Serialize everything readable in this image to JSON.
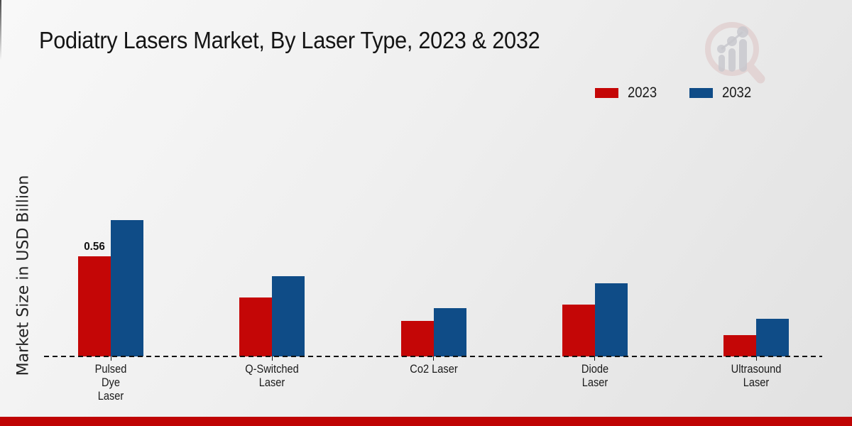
{
  "theme": {
    "background_top": "#f8f8f8",
    "background_bottom": "#e1e1e1",
    "footer_bar_color": "#bf0404",
    "text_color": "#1a1a1a",
    "axis_line_color": "#111111"
  },
  "icons": {
    "brand_logo": "magnifier-bar-chart-watermark"
  },
  "chart_data": {
    "type": "bar",
    "title": "Podiatry Lasers Market, By Laser Type, 2023 & 2032",
    "ylabel": "Market Size in USD Billion",
    "xlabel": "",
    "ylim": [
      0,
      0.8
    ],
    "grid": false,
    "legend_position": "top-right",
    "x_axis_style": "dashed",
    "categories": [
      "Pulsed Dye Laser",
      "Q-Switched Laser",
      "Co2 Laser",
      "Diode Laser",
      "Ultrasound Laser"
    ],
    "category_label_lines": [
      [
        "Pulsed",
        "Dye",
        "Laser"
      ],
      [
        "Q-Switched",
        "Laser"
      ],
      [
        "Co2 Laser"
      ],
      [
        "Diode",
        "Laser"
      ],
      [
        "Ultrasound",
        "Laser"
      ]
    ],
    "series": [
      {
        "name": "2023",
        "color": "#c40606",
        "values": [
          0.56,
          0.33,
          0.2,
          0.29,
          0.12
        ]
      },
      {
        "name": "2032",
        "color": "#0f4c87",
        "values": [
          0.76,
          0.45,
          0.27,
          0.41,
          0.21
        ]
      }
    ],
    "bar_value_labels": [
      {
        "series_index": 0,
        "category_index": 0,
        "text": "0.56"
      }
    ]
  }
}
